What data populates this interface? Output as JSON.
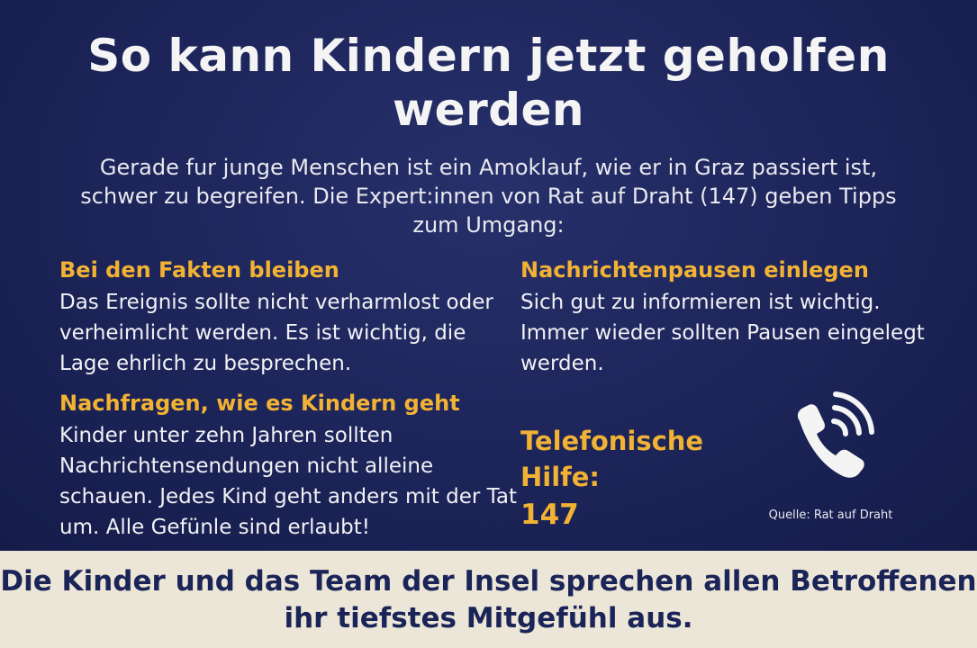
{
  "title": "So kann Kindern jetzt geholfen werden",
  "intro": "Gerade fur junge Menschen ist ein Amoklauf, wie er in Graz passiert ist, schwer zu begreifen. Die Expert:innen von Rat auf Draht (147) geben Tipps zum Umgang:",
  "tips": [
    {
      "heading": "Bei den Fakten bleiben",
      "text": "Das Ereignis sollte nicht verharmlost oder verheimlicht werden. Es ist wichtig, die Lage ehrlich zu besprechen."
    },
    {
      "heading": "Nachrichtenpausen einlegen",
      "text": "Sich gut zu informieren ist wichtig. Immer wieder sollten Pausen eingelegt werden."
    },
    {
      "heading": "Nachfragen, wie es Kindern geht",
      "text": "Kinder unter zehn Jahren sollten Nachrichtensendungen nicht alleine schauen. Jedes Kind geht anders mit der Tat um. Alle Gefünle sind erlaubt!"
    }
  ],
  "hotline": {
    "label": "Telefonische Hilfe:",
    "number": "147",
    "icon": "phone-icon"
  },
  "source": "Quelle: Rat auf Draht",
  "footer": "Die Kinder und das Team der Insel sprechen allen Betroffenen ihr tiefstes Mitgefühl aus.",
  "colors": {
    "background": "#1b2457",
    "accent": "#f2b234",
    "text": "#f1f1f4",
    "footer_background": "#ece6d8",
    "footer_text": "#1b2457"
  }
}
